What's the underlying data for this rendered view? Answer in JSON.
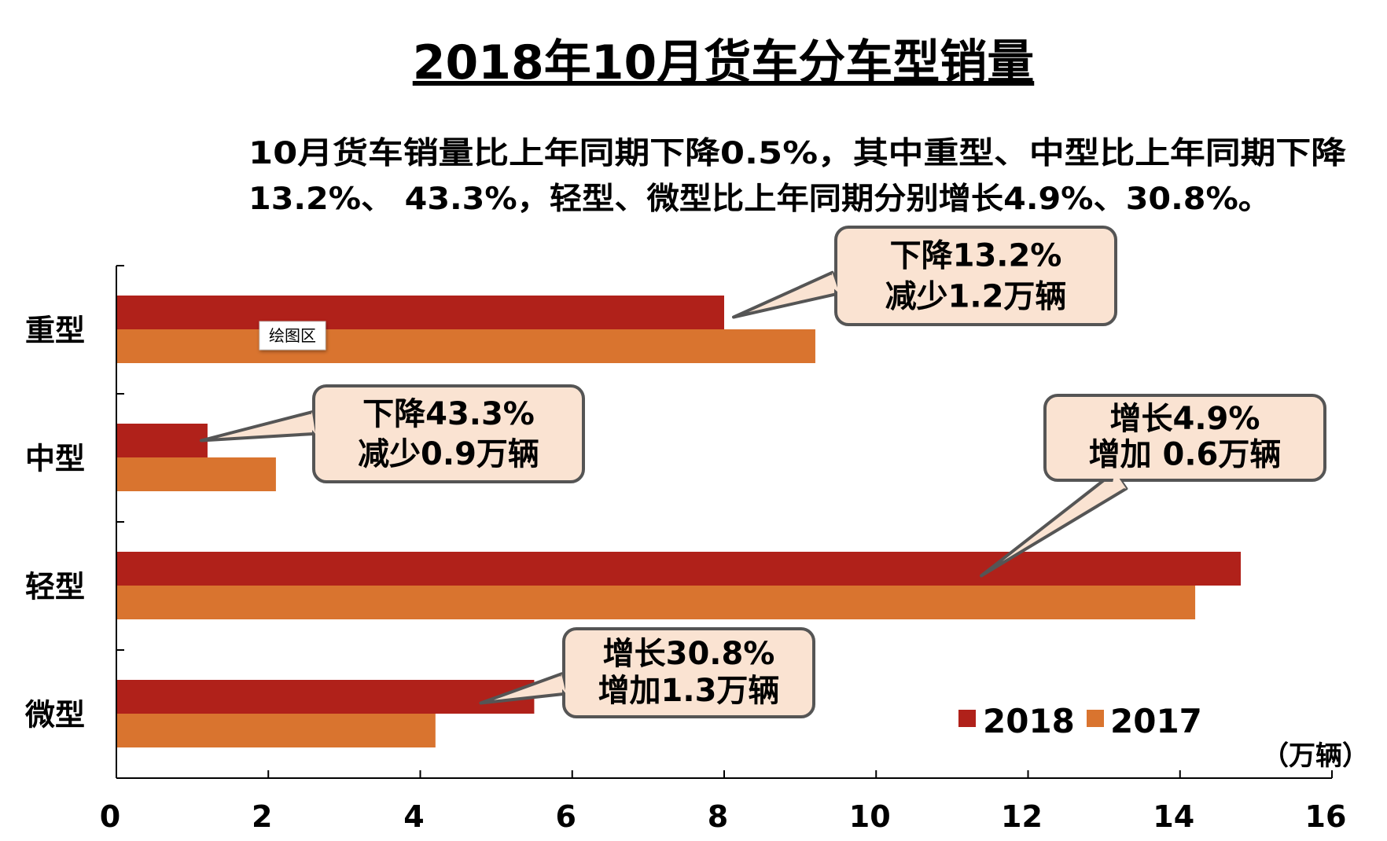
{
  "title": "2018年10月货车分车型销量",
  "subtitle_lines": [
    "10月货车销量比上年同期下降0.5%，其中重型、中型比上年同期下降",
    "13.2%、 43.3%，轻型、微型比上年同期分别增长4.9%、30.8%。"
  ],
  "unit_label": "（万辆）",
  "plot_area_tag": "绘图区",
  "colors": {
    "2018": "#B0211A",
    "2017": "#D9742F",
    "callout_fill": "#FAE3D2",
    "callout_stroke": "#555555"
  },
  "chart_data": {
    "type": "bar",
    "orientation": "horizontal",
    "categories": [
      "重型",
      "中型",
      "轻型",
      "微型"
    ],
    "series": [
      {
        "name": "2018",
        "values": [
          8.0,
          1.2,
          14.8,
          5.5
        ]
      },
      {
        "name": "2017",
        "values": [
          9.2,
          2.1,
          14.2,
          4.2
        ]
      }
    ],
    "xlim": [
      0,
      16
    ],
    "xticks": [
      "0",
      "2",
      "4",
      "6",
      "8",
      "10",
      "12",
      "14",
      "16"
    ],
    "legend_position": "bottom-right",
    "annotations": [
      {
        "category": "重型",
        "lines": [
          "下降13.2%",
          "减少1.2万辆"
        ]
      },
      {
        "category": "中型",
        "lines": [
          "下降43.3%",
          "减少0.9万辆"
        ]
      },
      {
        "category": "轻型",
        "lines": [
          "增长4.9%",
          "增加 0.6万辆"
        ]
      },
      {
        "category": "微型",
        "lines": [
          "增长30.8%",
          "增加1.3万辆"
        ]
      }
    ]
  }
}
